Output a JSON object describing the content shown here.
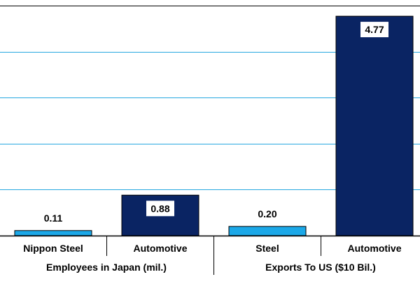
{
  "chart_data": {
    "type": "bar",
    "title": "",
    "xlabel": "",
    "ylabel": "",
    "ylim": [
      0,
      5
    ],
    "grid": true,
    "legend": "none",
    "groups": [
      {
        "label": "Employees in Japan (mil.)",
        "categories": [
          "Nippon Steel",
          "Automotive"
        ]
      },
      {
        "label": "Exports To US ($10 Bil.)",
        "categories": [
          "Steel",
          "Automotive"
        ]
      }
    ],
    "categories": [
      "Nippon Steel",
      "Automotive",
      "Steel",
      "Automotive"
    ],
    "values": [
      0.11,
      0.88,
      0.2,
      4.77
    ],
    "data_labels": [
      "0.11",
      "0.88",
      "0.20",
      "4.77"
    ],
    "bar_colors": [
      "#1ba8e8",
      "#0a2463",
      "#1ba8e8",
      "#0a2463"
    ],
    "gridline_values": [
      1,
      2,
      3,
      4,
      5
    ],
    "gridline_color": "#29a8e0"
  }
}
